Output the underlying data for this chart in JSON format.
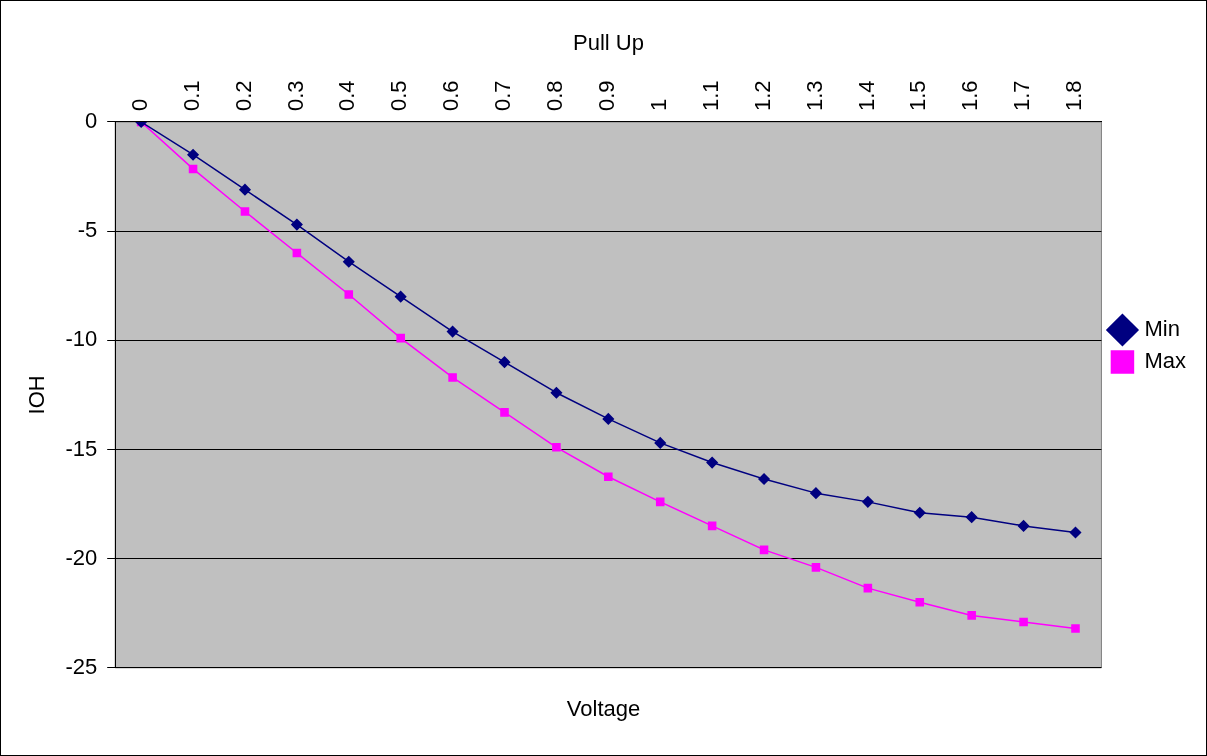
{
  "chart_data": {
    "type": "line",
    "title": "Pull Up",
    "xlabel": "Voltage",
    "ylabel": "IOH",
    "categories": [
      "0",
      "0.1",
      "0.2",
      "0.3",
      "0.4",
      "0.5",
      "0.6",
      "0.7",
      "0.8",
      "0.9",
      "1",
      "1.1",
      "1.2",
      "1.3",
      "1.4",
      "1.5",
      "1.6",
      "1.7",
      "1.8"
    ],
    "series": [
      {
        "name": "Min",
        "color": "#000080",
        "marker": "diamond",
        "values": [
          0,
          -1.5,
          -3.1,
          -4.7,
          -6.4,
          -8.0,
          -9.6,
          -11.0,
          -12.4,
          -13.6,
          -14.7,
          -15.6,
          -16.35,
          -17.0,
          -17.4,
          -17.9,
          -18.1,
          -18.5,
          -18.8
        ]
      },
      {
        "name": "Max",
        "color": "#ff00ff",
        "marker": "square",
        "values": [
          0,
          -2.15,
          -4.1,
          -6.0,
          -7.9,
          -9.9,
          -11.7,
          -13.3,
          -14.9,
          -16.25,
          -17.4,
          -18.5,
          -19.6,
          -20.4,
          -21.35,
          -22.0,
          -22.6,
          -22.9,
          -23.2
        ]
      }
    ],
    "ylim": [
      -25,
      0
    ],
    "yticks": [
      -25,
      -20,
      -15,
      -10,
      -5,
      0
    ],
    "grid": "y",
    "legend": "right"
  }
}
